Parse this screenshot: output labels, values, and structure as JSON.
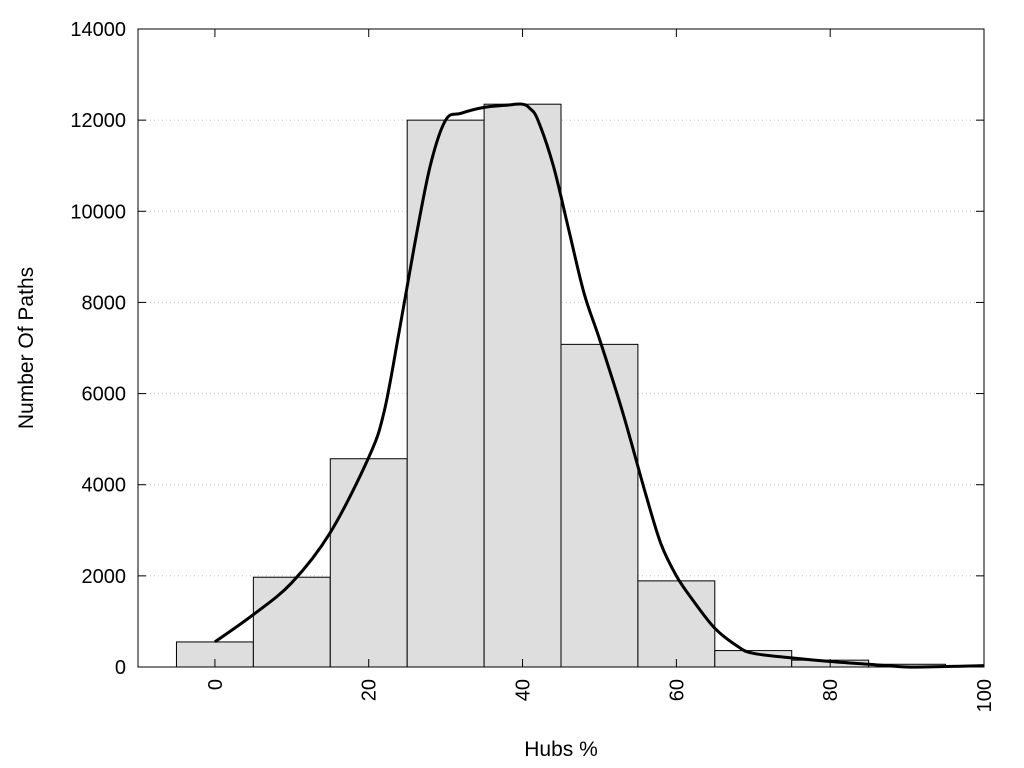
{
  "chart_data": {
    "type": "bar",
    "title": "",
    "xlabel": "Hubs %",
    "ylabel": "Number Of Paths",
    "xlim": [
      -10,
      100
    ],
    "ylim": [
      0,
      14000
    ],
    "x_ticks": [
      0,
      20,
      40,
      60,
      80,
      100
    ],
    "y_ticks": [
      0,
      2000,
      4000,
      6000,
      8000,
      10000,
      12000,
      14000
    ],
    "grid": "horizontal dotted",
    "legend": "none",
    "bin_width": 10,
    "bars": {
      "centers": [
        0,
        10,
        20,
        30,
        40,
        50,
        60,
        70,
        80,
        90,
        100
      ],
      "values": [
        550,
        1970,
        4570,
        12000,
        12350,
        7080,
        1890,
        360,
        150,
        60,
        20
      ]
    },
    "curve": {
      "x": [
        0,
        5,
        10,
        15,
        20,
        22,
        24,
        26,
        28,
        30,
        32,
        35,
        38,
        40,
        41,
        42,
        44,
        46,
        48,
        50,
        53,
        56,
        58,
        60,
        62,
        65,
        68,
        70,
        75,
        80,
        85,
        90,
        95,
        100
      ],
      "y": [
        550,
        1150,
        1850,
        2950,
        4600,
        5600,
        7400,
        9300,
        11000,
        12000,
        12150,
        12280,
        12330,
        12350,
        12250,
        12000,
        11000,
        9600,
        8200,
        7200,
        5600,
        3800,
        2700,
        2000,
        1500,
        850,
        450,
        300,
        200,
        120,
        60,
        0,
        10,
        30
      ]
    },
    "colors": {
      "bar_fill": "#dedede",
      "bar_stroke": "#000000",
      "curve": "#000000",
      "grid": "#c8c8c8"
    }
  }
}
